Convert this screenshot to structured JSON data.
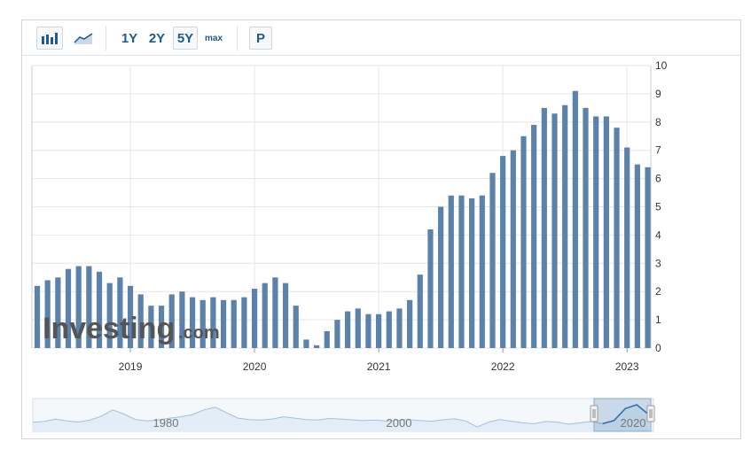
{
  "toolbar": {
    "bar_icon": "bar-chart-icon",
    "line_icon": "area-chart-icon",
    "range_1y": "1Y",
    "range_2y": "2Y",
    "range_5y": "5Y",
    "range_max": "max",
    "p_label": "P",
    "selected_range": "5Y"
  },
  "watermark": {
    "brand": "Investing",
    "suffix": ".com"
  },
  "colors": {
    "bar": "#5b82ab",
    "grid": "#e6e6e6",
    "navigator": "#2f6fa8",
    "accent": "#1f5a8a"
  },
  "chart_data": {
    "type": "bar",
    "x_start": "2018-04",
    "frequency": "monthly",
    "values": [
      2.2,
      2.4,
      2.5,
      2.8,
      2.9,
      2.9,
      2.7,
      2.3,
      2.5,
      2.2,
      1.9,
      1.5,
      1.5,
      1.9,
      2.0,
      1.8,
      1.7,
      1.8,
      1.7,
      1.7,
      1.8,
      2.1,
      2.3,
      2.5,
      2.3,
      1.5,
      0.3,
      0.1,
      0.6,
      1.0,
      1.3,
      1.4,
      1.2,
      1.2,
      1.3,
      1.4,
      1.7,
      2.6,
      4.2,
      5.0,
      5.4,
      5.4,
      5.3,
      5.4,
      6.2,
      6.8,
      7.0,
      7.5,
      7.9,
      8.5,
      8.3,
      8.6,
      9.1,
      8.5,
      8.2,
      8.2,
      7.8,
      7.1,
      6.5,
      6.4
    ],
    "xticks": [
      "2019",
      "2020",
      "2021",
      "2022",
      "2023"
    ],
    "ylim": [
      0,
      10
    ],
    "yticks": [
      0,
      1,
      2,
      3,
      4,
      5,
      6,
      7,
      8,
      9,
      10
    ],
    "y_axis_side": "right",
    "grid": true,
    "legend": "none",
    "navigator": {
      "labels": [
        "1980",
        "2000",
        "2020"
      ],
      "series": [
        2.0,
        2.3,
        3.2,
        2.5,
        2.1,
        2.8,
        4.2,
        6.5,
        5.0,
        3.0,
        2.5,
        2.8,
        3.5,
        4.0,
        4.8,
        6.5,
        7.5,
        5.5,
        3.5,
        3.0,
        2.8,
        3.2,
        4.0,
        3.5,
        3.0,
        2.8,
        3.4,
        3.2,
        2.9,
        2.6,
        2.8,
        2.5,
        2.7,
        3.0,
        2.6,
        2.4,
        2.9,
        3.3,
        2.5,
        0.3,
        2.1,
        3.0,
        2.4,
        1.8,
        1.5,
        2.3,
        2.1,
        1.3,
        1.8,
        2.3,
        1.5,
        2.6,
        7.0,
        8.4,
        5.0
      ]
    }
  }
}
